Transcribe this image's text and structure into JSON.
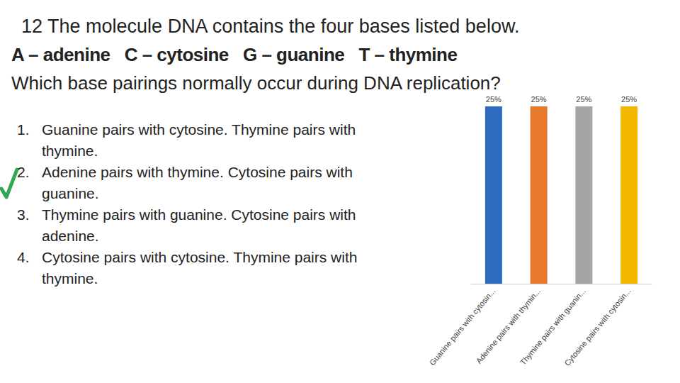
{
  "slide": {
    "title": "12 The molecule DNA contains the four bases listed below.",
    "bases": "A – adenine   C – cytosine   G – guanine   T – thymine",
    "question": "Which base pairings normally occur during DNA replication?",
    "options": [
      {
        "number": "1.",
        "text": "Guanine pairs with cytosine. Thymine pairs with thymine."
      },
      {
        "number": "2.",
        "text": "Adenine pairs with thymine. Cytosine pairs with guanine."
      },
      {
        "number": "3.",
        "text": "Thymine pairs with guanine. Cytosine pairs with adenine."
      },
      {
        "number": "4.",
        "text": "Cytosine pairs with cytosine. Thymine pairs with thymine."
      }
    ],
    "correct": "2."
  },
  "chart_data": {
    "type": "bar",
    "categories": [
      "Guanine pairs with cytosin...",
      "Adenine pairs with thymin...",
      "Thymine pairs with guanin...",
      "Cytosine pairs with cytosin..."
    ],
    "values": [
      25,
      25,
      25,
      25
    ],
    "value_labels": [
      "25%",
      "25%",
      "25%",
      "25%"
    ],
    "colors": [
      "#2e6cc0",
      "#e8782a",
      "#a5a5a5",
      "#f2b800"
    ],
    "ylim": [
      0,
      25
    ],
    "grid": false,
    "data_labels": true,
    "tick_labels": "x"
  }
}
